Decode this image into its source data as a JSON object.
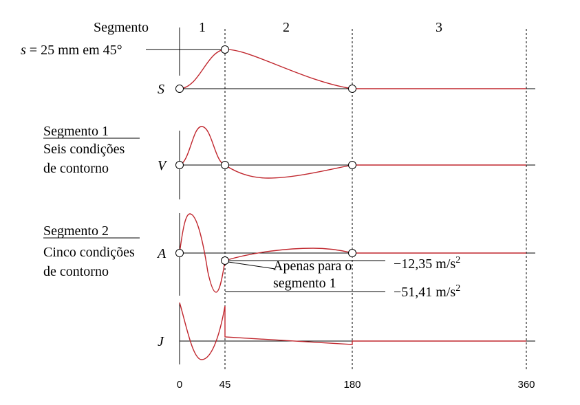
{
  "header": {
    "segment_word": "Segmento",
    "segment_numbers": [
      "1",
      "2",
      "3"
    ]
  },
  "annotations": {
    "s_label_var": "s",
    "s_label_rest": " = 25 mm em 45°",
    "seg1_title": "Segmento 1",
    "seg1_line1": "Seis condições",
    "seg1_line2": "de contorno",
    "seg2_title": "Segmento 2",
    "seg2_line1": "Cinco condições",
    "seg2_line2": "de contorno",
    "note_line1": "Apenas para o",
    "note_line2": "segmento 1",
    "accel_val1": "−12,35 m/s",
    "accel_val2": "−51,41 m/s",
    "superscript": "2"
  },
  "axes": {
    "s": "S",
    "v": "V",
    "a": "A",
    "j": "J"
  },
  "x_ticks": [
    "0",
    "45",
    "180",
    "360"
  ],
  "colors": {
    "curve": "#c0262d",
    "axis": "#000000"
  }
}
